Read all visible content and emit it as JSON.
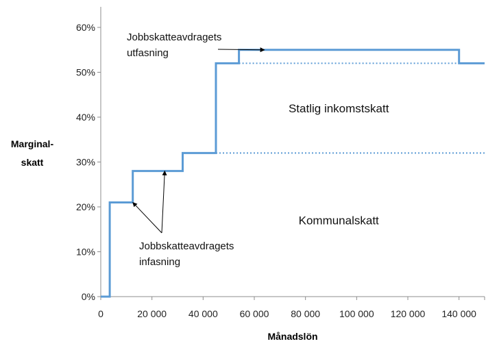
{
  "chart_data": {
    "type": "line",
    "step": true,
    "xlabel": "Månadslön",
    "ylabel": [
      "Marginal-",
      "skatt"
    ],
    "xlim": [
      0,
      150000
    ],
    "ylim": [
      0,
      0.6
    ],
    "grid": false,
    "x_ticks": [
      0,
      20000,
      40000,
      60000,
      80000,
      100000,
      120000,
      140000
    ],
    "x_tick_labels": [
      "0",
      "20 000",
      "40 000",
      "60 000",
      "80 000",
      "100 000",
      "120 000",
      "140 000"
    ],
    "y_ticks": [
      0,
      0.1,
      0.2,
      0.3,
      0.4,
      0.5,
      0.6
    ],
    "y_tick_labels": [
      "0%",
      "10%",
      "20%",
      "30%",
      "40%",
      "50%",
      "60%"
    ],
    "series": [
      {
        "style": "solid",
        "color": "#5b9bd5",
        "points": [
          [
            0,
            0
          ],
          [
            3500,
            0
          ],
          [
            3500,
            0.21
          ],
          [
            12500,
            0.21
          ],
          [
            12500,
            0.28
          ],
          [
            32000,
            0.28
          ],
          [
            32000,
            0.32
          ],
          [
            45000,
            0.32
          ],
          [
            45000,
            0.52
          ],
          [
            54000,
            0.52
          ],
          [
            54000,
            0.55
          ],
          [
            140000,
            0.55
          ],
          [
            140000,
            0.52
          ],
          [
            150000,
            0.52
          ]
        ]
      },
      {
        "style": "dotted",
        "color": "#5b9bd5",
        "points": [
          [
            45000,
            0.32
          ],
          [
            150000,
            0.32
          ]
        ]
      },
      {
        "style": "dotted",
        "color": "#5b9bd5",
        "points": [
          [
            54000,
            0.52
          ],
          [
            140000,
            0.52
          ]
        ]
      }
    ],
    "annotations": [
      {
        "lines": [
          "Jobbskatteavdragets",
          "utfasning"
        ],
        "arrows_to": [
          [
            64000,
            0.55
          ]
        ]
      },
      {
        "lines": [
          "Jobbskatteavdragets",
          "infasning"
        ],
        "arrows_to": [
          [
            12500,
            0.21
          ],
          [
            25000,
            0.28
          ]
        ]
      }
    ],
    "region_labels": [
      {
        "text": "Statlig inkomstskatt",
        "x": 93000,
        "y": 0.42
      },
      {
        "text": "Kommunalskatt",
        "x": 93000,
        "y": 0.17
      }
    ]
  }
}
